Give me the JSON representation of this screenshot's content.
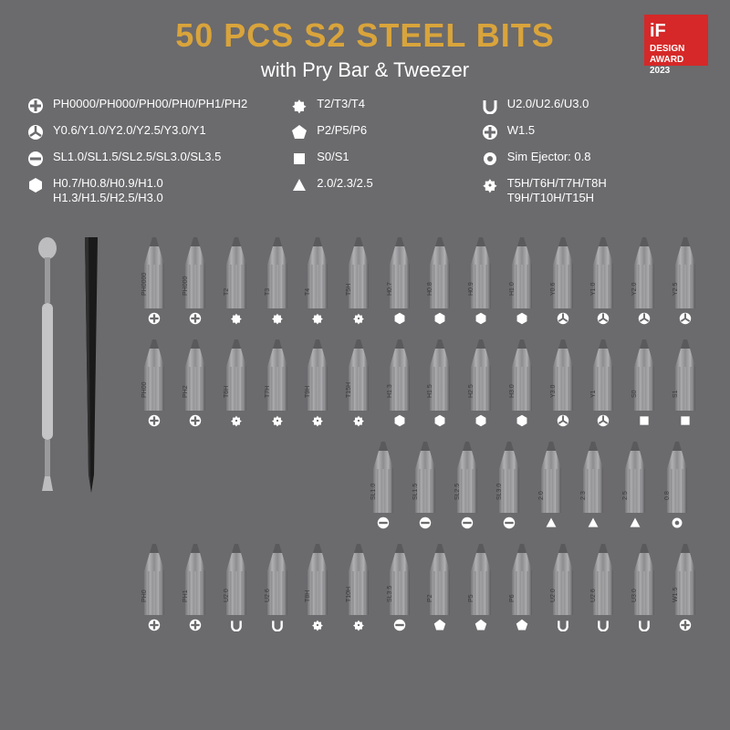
{
  "header": {
    "title": "50 PCS S2 STEEL BITS",
    "subtitle": "with Pry Bar & Tweezer"
  },
  "award": {
    "if": "iF",
    "l1": "DESIGN",
    "l2": "AWARD",
    "l3": "2023"
  },
  "colors": {
    "bg": "#6b6a6d",
    "gold": "#d9a43b",
    "white": "#ffffff",
    "red": "#d62828",
    "bit_light": "#9a9a9c",
    "bit_dark": "#6f6f72",
    "bit_edge": "#4e4e51",
    "black": "#1a1a1a"
  },
  "specs": {
    "col1": [
      {
        "icon": "phillips",
        "text": "PH0000/PH000/PH00/PH0/PH1/PH2"
      },
      {
        "icon": "tri",
        "text": "Y0.6/Y1.0/Y2.0/Y2.5/Y3.0/Y1"
      },
      {
        "icon": "slot",
        "text": "SL1.0/SL1.5/SL2.5/SL3.0/SL3.5"
      },
      {
        "icon": "hex",
        "text": "H0.7/H0.8/H0.9/H1.0\nH1.3/H1.5/H2.5/H3.0"
      }
    ],
    "col2": [
      {
        "icon": "torx",
        "text": "T2/T3/T4"
      },
      {
        "icon": "penta",
        "text": "P2/P5/P6"
      },
      {
        "icon": "square",
        "text": "S0/S1"
      },
      {
        "icon": "triangle",
        "text": "2.0/2.3/2.5"
      }
    ],
    "col3": [
      {
        "icon": "ushape",
        "text": "U2.0/U2.6/U3.0"
      },
      {
        "icon": "phillips",
        "text": "W1.5"
      },
      {
        "icon": "ring",
        "text": "Sim Ejector: 0.8"
      },
      {
        "icon": "torxsec",
        "text": "T5H/T6H/T7H/T8H\nT9H/T10H/T15H"
      }
    ]
  },
  "rows": [
    {
      "offset": false,
      "bits": [
        {
          "label": "PH0000",
          "icon": "phillips"
        },
        {
          "label": "PH000",
          "icon": "phillips"
        },
        {
          "label": "T2",
          "icon": "torx"
        },
        {
          "label": "T3",
          "icon": "torx"
        },
        {
          "label": "T4",
          "icon": "torx"
        },
        {
          "label": "T5H",
          "icon": "torxsec"
        },
        {
          "label": "H0.7",
          "icon": "hex"
        },
        {
          "label": "H0.8",
          "icon": "hex"
        },
        {
          "label": "H0.9",
          "icon": "hex"
        },
        {
          "label": "H1.0",
          "icon": "hex"
        },
        {
          "label": "Y0.6",
          "icon": "tri"
        },
        {
          "label": "Y1.0",
          "icon": "tri"
        },
        {
          "label": "Y2.0",
          "icon": "tri"
        },
        {
          "label": "Y2.5",
          "icon": "tri"
        }
      ]
    },
    {
      "offset": false,
      "bits": [
        {
          "label": "PH00",
          "icon": "phillips"
        },
        {
          "label": "PH2",
          "icon": "phillips"
        },
        {
          "label": "T6H",
          "icon": "torxsec"
        },
        {
          "label": "T7H",
          "icon": "torxsec"
        },
        {
          "label": "T9H",
          "icon": "torxsec"
        },
        {
          "label": "T15H",
          "icon": "torxsec"
        },
        {
          "label": "H1.3",
          "icon": "hex"
        },
        {
          "label": "H1.5",
          "icon": "hex"
        },
        {
          "label": "H2.5",
          "icon": "hex"
        },
        {
          "label": "H3.0",
          "icon": "hex"
        },
        {
          "label": "Y3.0",
          "icon": "tri"
        },
        {
          "label": "Y1",
          "icon": "tri"
        },
        {
          "label": "S0",
          "icon": "square"
        },
        {
          "label": "S1",
          "icon": "square"
        }
      ]
    },
    {
      "offset": true,
      "bits": [
        {
          "label": "SL1.0",
          "icon": "slot"
        },
        {
          "label": "SL1.5",
          "icon": "slot"
        },
        {
          "label": "SL2.5",
          "icon": "slot"
        },
        {
          "label": "SL3.0",
          "icon": "slot"
        },
        {
          "label": "2.0",
          "icon": "triangle"
        },
        {
          "label": "2.3",
          "icon": "triangle"
        },
        {
          "label": "2.5",
          "icon": "triangle"
        },
        {
          "label": "0.8",
          "icon": "ring"
        }
      ]
    },
    {
      "offset": false,
      "bits": [
        {
          "label": "PH0",
          "icon": "phillips"
        },
        {
          "label": "PH1",
          "icon": "phillips"
        },
        {
          "label": "U2.0",
          "icon": "ushape"
        },
        {
          "label": "U2.6",
          "icon": "ushape"
        },
        {
          "label": "T8H",
          "icon": "torxsec"
        },
        {
          "label": "T10H",
          "icon": "torxsec"
        },
        {
          "label": "SL3.5",
          "icon": "slot"
        },
        {
          "label": "P2",
          "icon": "penta"
        },
        {
          "label": "P5",
          "icon": "penta"
        },
        {
          "label": "P6",
          "icon": "penta"
        },
        {
          "label": "U2.0",
          "icon": "ushape"
        },
        {
          "label": "U2.6",
          "icon": "ushape"
        },
        {
          "label": "U3.0",
          "icon": "ushape"
        },
        {
          "label": "W1.5",
          "icon": "phillips"
        }
      ]
    }
  ]
}
